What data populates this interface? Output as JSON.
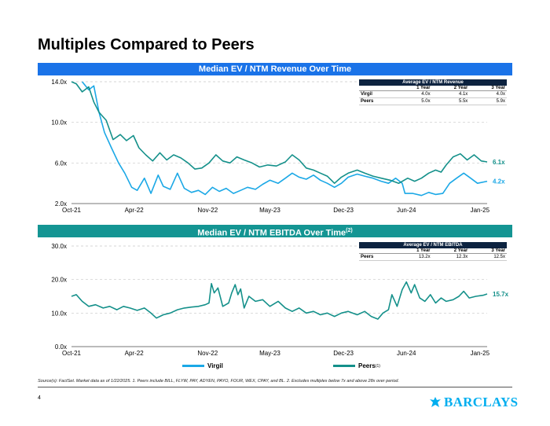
{
  "page": {
    "title": "Multiples Compared to Peers",
    "page_number": "4",
    "source": "Source(s): FactSet. Market data as of 1/22/2025. 1. Peers include BILL, FLYW, PAY, ADYEN, PAYO, FOUR, WEX, CPAY, and BL. 2. Excludes multiples below 7x and above 28x over period.",
    "logo_text": "BARCLAYS",
    "logo_icon": "eagle-icon"
  },
  "colors": {
    "virgil": "#1ba8e6",
    "peers": "#14908a",
    "banner_blue": "#1a73e8",
    "banner_teal": "#149593",
    "table_header": "#0d2340"
  },
  "legend": [
    {
      "name": "Virgil",
      "sup": "",
      "color": "#1ba8e6"
    },
    {
      "name": "Peers",
      "sup": "(1)",
      "color": "#14908a"
    }
  ],
  "revenue_table": {
    "header": "Average EV / NTM Revenue",
    "columns": [
      "1 Year",
      "2 Year",
      "3 Year"
    ],
    "rows": [
      {
        "label": "Virgil",
        "values": [
          "4.0x",
          "4.1x",
          "4.0x"
        ]
      },
      {
        "label": "Peers",
        "values": [
          "5.0x",
          "5.5x",
          "5.9x"
        ]
      }
    ]
  },
  "ebitda_table": {
    "header": "Average EV / NTM EBITDA",
    "columns": [
      "1 Year",
      "2 Year",
      "3 Year"
    ],
    "rows": [
      {
        "label": "Peers",
        "values": [
          "13.2x",
          "12.3x",
          "12.5x"
        ]
      }
    ]
  },
  "chart_data": [
    {
      "type": "line",
      "title": "Median EV / NTM Revenue Over Time",
      "title_sup": "",
      "banner": "blue",
      "x_start": "2021-10-01",
      "x_end": "2025-01-22",
      "x_ticks": [
        "Oct-21",
        "Apr-22",
        "Nov-22",
        "May-23",
        "Dec-23",
        "Jun-24",
        "Jan-25"
      ],
      "ylim": [
        2,
        14
      ],
      "y_ticks": [
        2,
        6,
        10,
        14
      ],
      "y_tick_labels": [
        "2.0x",
        "6.0x",
        "10.0x",
        "14.0x"
      ],
      "grid": "horizontal dashed",
      "end_labels": [
        {
          "series": "Peers",
          "text": "6.1x",
          "value": 6.1
        },
        {
          "series": "Virgil",
          "text": "4.2x",
          "value": 4.2
        }
      ],
      "series": [
        {
          "name": "Virgil",
          "color": "#1ba8e6",
          "points": [
            [
              "2021-11-01",
              14.0
            ],
            [
              "2021-11-20",
              13.2
            ],
            [
              "2021-12-05",
              13.6
            ],
            [
              "2021-12-20",
              11.0
            ],
            [
              "2022-01-05",
              9.0
            ],
            [
              "2022-01-25",
              7.5
            ],
            [
              "2022-02-15",
              6.0
            ],
            [
              "2022-03-05",
              5.0
            ],
            [
              "2022-03-25",
              3.6
            ],
            [
              "2022-04-10",
              3.3
            ],
            [
              "2022-05-01",
              4.5
            ],
            [
              "2022-05-20",
              3.0
            ],
            [
              "2022-06-10",
              4.8
            ],
            [
              "2022-06-25",
              3.7
            ],
            [
              "2022-07-15",
              3.4
            ],
            [
              "2022-08-05",
              5.0
            ],
            [
              "2022-08-25",
              3.5
            ],
            [
              "2022-09-15",
              3.1
            ],
            [
              "2022-10-05",
              3.3
            ],
            [
              "2022-10-25",
              2.9
            ],
            [
              "2022-11-15",
              3.6
            ],
            [
              "2022-12-05",
              3.2
            ],
            [
              "2022-12-25",
              3.5
            ],
            [
              "2023-01-15",
              3.0
            ],
            [
              "2023-02-05",
              3.3
            ],
            [
              "2023-02-25",
              3.6
            ],
            [
              "2023-03-20",
              3.4
            ],
            [
              "2023-04-10",
              3.9
            ],
            [
              "2023-05-01",
              4.3
            ],
            [
              "2023-05-25",
              4.0
            ],
            [
              "2023-06-15",
              4.5
            ],
            [
              "2023-07-05",
              5.0
            ],
            [
              "2023-07-25",
              4.6
            ],
            [
              "2023-08-15",
              4.4
            ],
            [
              "2023-09-05",
              4.8
            ],
            [
              "2023-09-25",
              4.3
            ],
            [
              "2023-10-15",
              4.0
            ],
            [
              "2023-11-05",
              3.6
            ],
            [
              "2023-11-25",
              4.0
            ],
            [
              "2023-12-15",
              4.6
            ],
            [
              "2024-01-10",
              4.9
            ],
            [
              "2024-02-01",
              4.7
            ],
            [
              "2024-02-25",
              4.5
            ],
            [
              "2024-03-20",
              4.2
            ],
            [
              "2024-04-10",
              4.0
            ],
            [
              "2024-05-01",
              4.5
            ],
            [
              "2024-05-20",
              4.0
            ],
            [
              "2024-05-28",
              3.0
            ],
            [
              "2024-06-20",
              3.0
            ],
            [
              "2024-07-15",
              2.8
            ],
            [
              "2024-08-05",
              3.1
            ],
            [
              "2024-08-25",
              2.9
            ],
            [
              "2024-09-15",
              3.0
            ],
            [
              "2024-10-05",
              4.0
            ],
            [
              "2024-10-25",
              4.5
            ],
            [
              "2024-11-15",
              5.0
            ],
            [
              "2024-12-05",
              4.5
            ],
            [
              "2024-12-25",
              4.0
            ],
            [
              "2025-01-22",
              4.2
            ]
          ]
        },
        {
          "name": "Peers",
          "color": "#14908a",
          "points": [
            [
              "2021-10-01",
              14.0
            ],
            [
              "2021-10-15",
              13.8
            ],
            [
              "2021-11-01",
              13.0
            ],
            [
              "2021-11-20",
              13.5
            ],
            [
              "2021-12-05",
              12.0
            ],
            [
              "2021-12-20",
              11.0
            ],
            [
              "2022-01-10",
              10.2
            ],
            [
              "2022-01-30",
              8.3
            ],
            [
              "2022-02-20",
              8.8
            ],
            [
              "2022-03-10",
              8.2
            ],
            [
              "2022-03-30",
              8.7
            ],
            [
              "2022-04-15",
              7.5
            ],
            [
              "2022-05-05",
              6.8
            ],
            [
              "2022-05-25",
              6.2
            ],
            [
              "2022-06-15",
              7.0
            ],
            [
              "2022-07-05",
              6.3
            ],
            [
              "2022-07-25",
              6.8
            ],
            [
              "2022-08-15",
              6.5
            ],
            [
              "2022-09-05",
              6.0
            ],
            [
              "2022-09-25",
              5.4
            ],
            [
              "2022-10-15",
              5.5
            ],
            [
              "2022-11-05",
              6.0
            ],
            [
              "2022-11-25",
              6.8
            ],
            [
              "2022-12-15",
              6.2
            ],
            [
              "2023-01-05",
              6.0
            ],
            [
              "2023-01-25",
              6.6
            ],
            [
              "2023-02-15",
              6.3
            ],
            [
              "2023-03-10",
              6.0
            ],
            [
              "2023-04-01",
              5.6
            ],
            [
              "2023-04-25",
              5.8
            ],
            [
              "2023-05-20",
              5.7
            ],
            [
              "2023-06-15",
              6.1
            ],
            [
              "2023-07-05",
              6.8
            ],
            [
              "2023-07-25",
              6.3
            ],
            [
              "2023-08-15",
              5.5
            ],
            [
              "2023-09-05",
              5.3
            ],
            [
              "2023-09-25",
              5.0
            ],
            [
              "2023-10-15",
              4.7
            ],
            [
              "2023-11-05",
              4.0
            ],
            [
              "2023-11-25",
              4.6
            ],
            [
              "2023-12-15",
              5.0
            ],
            [
              "2024-01-10",
              5.3
            ],
            [
              "2024-02-01",
              5.0
            ],
            [
              "2024-02-25",
              4.7
            ],
            [
              "2024-03-20",
              4.5
            ],
            [
              "2024-04-15",
              4.3
            ],
            [
              "2024-05-10",
              4.0
            ],
            [
              "2024-06-05",
              4.5
            ],
            [
              "2024-06-25",
              4.2
            ],
            [
              "2024-07-15",
              4.5
            ],
            [
              "2024-08-05",
              5.0
            ],
            [
              "2024-08-25",
              5.3
            ],
            [
              "2024-09-10",
              5.1
            ],
            [
              "2024-09-25",
              5.8
            ],
            [
              "2024-10-15",
              6.6
            ],
            [
              "2024-11-05",
              6.9
            ],
            [
              "2024-11-25",
              6.3
            ],
            [
              "2024-12-15",
              6.8
            ],
            [
              "2025-01-05",
              6.2
            ],
            [
              "2025-01-22",
              6.1
            ]
          ]
        }
      ]
    },
    {
      "type": "line",
      "title": "Median EV / NTM EBITDA Over Time",
      "title_sup": "(2)",
      "banner": "teal",
      "x_start": "2021-10-01",
      "x_end": "2025-01-22",
      "x_ticks": [
        "Oct-21",
        "Apr-22",
        "Nov-22",
        "May-23",
        "Dec-23",
        "Jun-24",
        "Jan-25"
      ],
      "ylim": [
        0,
        30
      ],
      "y_ticks": [
        0,
        10,
        20,
        30
      ],
      "y_tick_labels": [
        "0.0x",
        "10.0x",
        "20.0x",
        "30.0x"
      ],
      "grid": "horizontal dashed",
      "end_labels": [
        {
          "series": "Peers",
          "text": "15.7x",
          "value": 15.7
        }
      ],
      "series": [
        {
          "name": "Peers",
          "color": "#14908a",
          "points": [
            [
              "2021-10-01",
              15.0
            ],
            [
              "2021-10-15",
              15.5
            ],
            [
              "2021-11-01",
              13.5
            ],
            [
              "2021-11-20",
              12.0
            ],
            [
              "2021-12-10",
              12.5
            ],
            [
              "2022-01-01",
              11.5
            ],
            [
              "2022-01-20",
              12.0
            ],
            [
              "2022-02-10",
              11.0
            ],
            [
              "2022-03-01",
              12.0
            ],
            [
              "2022-03-20",
              11.5
            ],
            [
              "2022-04-10",
              10.8
            ],
            [
              "2022-05-01",
              11.5
            ],
            [
              "2022-05-20",
              10.0
            ],
            [
              "2022-06-05",
              8.5
            ],
            [
              "2022-06-25",
              9.5
            ],
            [
              "2022-07-15",
              10.0
            ],
            [
              "2022-08-05",
              11.0
            ],
            [
              "2022-08-25",
              11.5
            ],
            [
              "2022-09-15",
              11.8
            ],
            [
              "2022-10-05",
              12.0
            ],
            [
              "2022-10-25",
              12.5
            ],
            [
              "2022-11-05",
              13.0
            ],
            [
              "2022-11-12",
              18.8
            ],
            [
              "2022-11-20",
              16.0
            ],
            [
              "2022-12-01",
              17.5
            ],
            [
              "2022-12-15",
              12.0
            ],
            [
              "2023-01-01",
              13.0
            ],
            [
              "2023-01-10",
              16.0
            ],
            [
              "2023-01-20",
              18.5
            ],
            [
              "2023-01-28",
              15.5
            ],
            [
              "2023-02-05",
              17.2
            ],
            [
              "2023-02-15",
              11.5
            ],
            [
              "2023-03-01",
              15.0
            ],
            [
              "2023-03-20",
              13.5
            ],
            [
              "2023-04-10",
              14.0
            ],
            [
              "2023-05-01",
              12.0
            ],
            [
              "2023-05-25",
              13.5
            ],
            [
              "2023-06-15",
              11.5
            ],
            [
              "2023-07-05",
              10.5
            ],
            [
              "2023-07-25",
              11.5
            ],
            [
              "2023-08-15",
              10.0
            ],
            [
              "2023-09-05",
              10.5
            ],
            [
              "2023-09-25",
              9.5
            ],
            [
              "2023-10-15",
              10.0
            ],
            [
              "2023-11-05",
              9.0
            ],
            [
              "2023-11-25",
              10.0
            ],
            [
              "2023-12-15",
              10.5
            ],
            [
              "2024-01-10",
              9.5
            ],
            [
              "2024-02-01",
              10.5
            ],
            [
              "2024-02-20",
              9.0
            ],
            [
              "2024-03-10",
              8.2
            ],
            [
              "2024-03-25",
              10.0
            ],
            [
              "2024-04-10",
              11.0
            ],
            [
              "2024-04-20",
              15.5
            ],
            [
              "2024-05-05",
              12.0
            ],
            [
              "2024-05-20",
              17.0
            ],
            [
              "2024-06-01",
              19.3
            ],
            [
              "2024-06-15",
              16.0
            ],
            [
              "2024-06-25",
              18.5
            ],
            [
              "2024-07-10",
              14.5
            ],
            [
              "2024-07-25",
              13.5
            ],
            [
              "2024-08-10",
              15.5
            ],
            [
              "2024-08-25",
              13.0
            ],
            [
              "2024-09-10",
              14.5
            ],
            [
              "2024-09-25",
              13.5
            ],
            [
              "2024-10-15",
              14.0
            ],
            [
              "2024-11-01",
              15.0
            ],
            [
              "2024-11-15",
              16.5
            ],
            [
              "2024-12-01",
              14.5
            ],
            [
              "2024-12-20",
              15.0
            ],
            [
              "2025-01-10",
              15.3
            ],
            [
              "2025-01-22",
              15.7
            ]
          ]
        }
      ]
    }
  ]
}
